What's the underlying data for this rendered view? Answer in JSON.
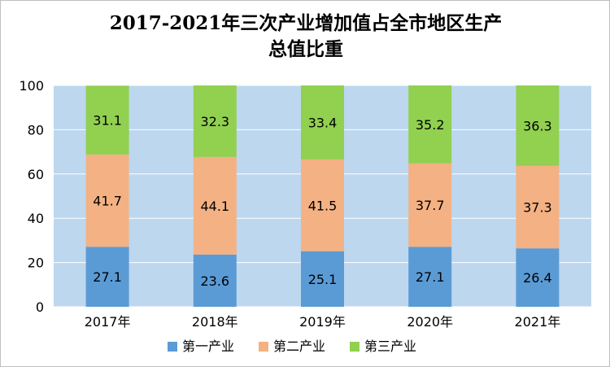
{
  "chart_data": {
    "type": "bar",
    "stacked": true,
    "title_lines": [
      "2017-2021年三次产业增加值占全市地区生产",
      "总值比重"
    ],
    "xlabel": "",
    "ylabel": "",
    "categories": [
      "2017年",
      "2018年",
      "2019年",
      "2020年",
      "2021年"
    ],
    "ylim": [
      0,
      100
    ],
    "yticks": [
      0,
      20,
      40,
      60,
      80,
      100
    ],
    "grid": true,
    "legend_position": "bottom",
    "plot_background": "#bdd7ee",
    "series": [
      {
        "name": "第一产业",
        "color": "#5b9bd5",
        "values": [
          27.1,
          23.6,
          25.1,
          27.1,
          26.4
        ]
      },
      {
        "name": "第二产业",
        "color": "#f4b183",
        "values": [
          41.7,
          44.1,
          41.5,
          37.7,
          37.3
        ]
      },
      {
        "name": "第三产业",
        "color": "#92d050",
        "values": [
          31.1,
          32.3,
          33.4,
          35.2,
          36.3
        ]
      }
    ]
  }
}
